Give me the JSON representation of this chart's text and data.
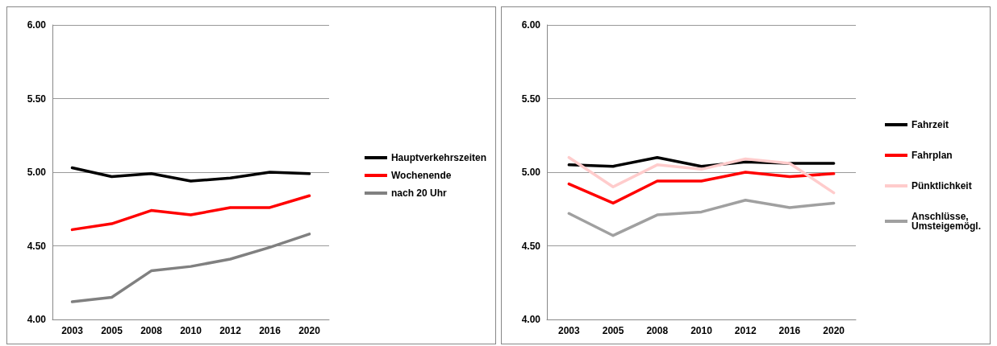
{
  "chart_data": [
    {
      "type": "line",
      "categories": [
        "2003",
        "2005",
        "2008",
        "2010",
        "2012",
        "2016",
        "2020"
      ],
      "ylim": [
        4,
        6
      ],
      "yticks": [
        {
          "value": 4,
          "label": "4.00"
        },
        {
          "value": 4.5,
          "label": "4.50"
        },
        {
          "value": 5,
          "label": "5.00"
        },
        {
          "value": 5.5,
          "label": "5.50"
        },
        {
          "value": 6,
          "label": "6.00"
        }
      ],
      "grid": "y",
      "legend": "right",
      "marker": "none",
      "line_style": "solid",
      "series": [
        {
          "name": "Hauptverkehrszeiten",
          "color": "#000000",
          "values": [
            5.03,
            4.97,
            4.99,
            4.94,
            4.96,
            5.0,
            4.99
          ]
        },
        {
          "name": "Wochenende",
          "color": "#ff0000",
          "values": [
            4.61,
            4.65,
            4.74,
            4.71,
            4.76,
            4.76,
            4.84
          ]
        },
        {
          "name": "nach 20 Uhr",
          "color": "#808080",
          "values": [
            4.12,
            4.15,
            4.33,
            4.36,
            4.41,
            4.49,
            4.58
          ]
        }
      ]
    },
    {
      "type": "line",
      "categories": [
        "2003",
        "2005",
        "2008",
        "2010",
        "2012",
        "2016",
        "2020"
      ],
      "ylim": [
        4,
        6
      ],
      "yticks": [
        {
          "value": 4,
          "label": "4.00"
        },
        {
          "value": 4.5,
          "label": "4.50"
        },
        {
          "value": 5,
          "label": "5.00"
        },
        {
          "value": 5.5,
          "label": "5.50"
        },
        {
          "value": 6,
          "label": "6.00"
        }
      ],
      "grid": "y",
      "legend": "right",
      "marker": "none",
      "line_style": "solid",
      "series": [
        {
          "name": "Fahrzeit",
          "color": "#000000",
          "values": [
            5.05,
            5.04,
            5.1,
            5.04,
            5.07,
            5.06,
            5.06
          ]
        },
        {
          "name": "Fahrplan",
          "color": "#ff0000",
          "values": [
            4.92,
            4.79,
            4.94,
            4.94,
            5.0,
            4.97,
            4.99
          ]
        },
        {
          "name": "Pünktlichkeit",
          "color": "#ffcccc",
          "values": [
            5.1,
            4.9,
            5.05,
            5.02,
            5.09,
            5.06,
            4.86
          ]
        },
        {
          "name": "Anschlüsse, Umsteigemögl.",
          "color": "#a0a0a0",
          "values": [
            4.72,
            4.57,
            4.71,
            4.73,
            4.81,
            4.76,
            4.79
          ]
        }
      ]
    }
  ]
}
